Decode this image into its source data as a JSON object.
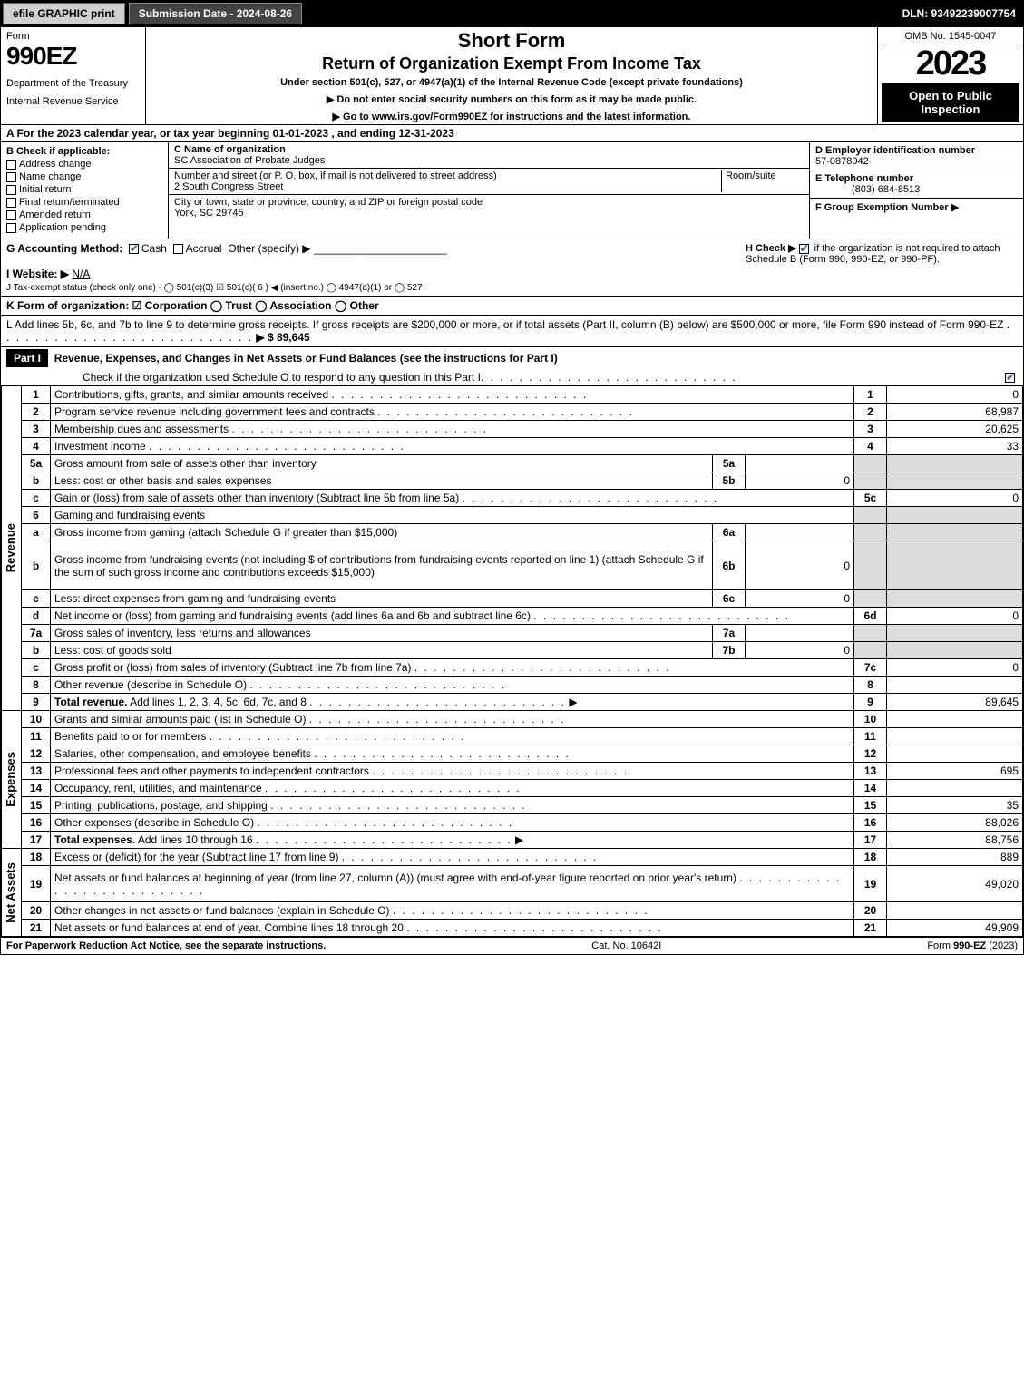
{
  "topbar": {
    "efile_label": "efile GRAPHIC print",
    "submission_label": "Submission Date - 2024-08-26",
    "dln_label": "DLN: 93492239007754"
  },
  "header": {
    "form_word": "Form",
    "form_number": "990EZ",
    "dept_line1": "Department of the Treasury",
    "dept_line2": "Internal Revenue Service",
    "title_short": "Short Form",
    "title_main": "Return of Organization Exempt From Income Tax",
    "subtitle": "Under section 501(c), 527, or 4947(a)(1) of the Internal Revenue Code (except private foundations)",
    "instr1": "▶ Do not enter social security numbers on this form as it may be made public.",
    "instr2": "▶ Go to www.irs.gov/Form990EZ for instructions and the latest information.",
    "omb": "OMB No. 1545-0047",
    "year": "2023",
    "open_to": "Open to Public Inspection"
  },
  "row_a": "A  For the 2023 calendar year, or tax year beginning 01-01-2023 , and ending 12-31-2023",
  "box_b": {
    "title": "B  Check if applicable:",
    "items": [
      "Address change",
      "Name change",
      "Initial return",
      "Final return/terminated",
      "Amended return",
      "Application pending"
    ]
  },
  "box_c": {
    "name_label": "C Name of organization",
    "name_value": "SC Association of Probate Judges",
    "street_label": "Number and street (or P. O. box, if mail is not delivered to street address)",
    "room_label": "Room/suite",
    "street_value": "2 South Congress Street",
    "city_label": "City or town, state or province, country, and ZIP or foreign postal code",
    "city_value": "York, SC  29745"
  },
  "box_d": {
    "ein_label": "D Employer identification number",
    "ein_value": "57-0878042",
    "tel_label": "E Telephone number",
    "tel_value": "(803) 684-8513",
    "group_label": "F Group Exemption Number   ▶"
  },
  "row_g": {
    "label": "G Accounting Method:",
    "cash": "Cash",
    "accrual": "Accrual",
    "other": "Other (specify) ▶",
    "h_label": "H  Check ▶",
    "h_text": "if the organization is not required to attach Schedule B (Form 990, 990-EZ, or 990-PF)."
  },
  "row_i": {
    "label": "I Website: ▶",
    "value": "N/A"
  },
  "row_j": "J Tax-exempt status (check only one) -  ◯ 501(c)(3)  ☑ 501(c)( 6 ) ◀ (insert no.)  ◯ 4947(a)(1) or  ◯ 527",
  "row_k": "K Form of organization:   ☑ Corporation   ◯ Trust   ◯ Association   ◯ Other",
  "row_l": {
    "text": "L Add lines 5b, 6c, and 7b to line 9 to determine gross receipts. If gross receipts are $200,000 or more, or if total assets (Part II, column (B) below) are $500,000 or more, file Form 990 instead of Form 990-EZ",
    "amount": "▶ $ 89,645"
  },
  "part1": {
    "label": "Part I",
    "title": "Revenue, Expenses, and Changes in Net Assets or Fund Balances (see the instructions for Part I)",
    "check_line": "Check if the organization used Schedule O to respond to any question in this Part I"
  },
  "sections": {
    "revenue_label": "Revenue",
    "expenses_label": "Expenses",
    "netassets_label": "Net Assets"
  },
  "lines": [
    {
      "sec": "rev",
      "n": "1",
      "d": "Contributions, gifts, grants, and similar amounts received",
      "ref": "1",
      "val": "0"
    },
    {
      "sec": "rev",
      "n": "2",
      "d": "Program service revenue including government fees and contracts",
      "ref": "2",
      "val": "68,987"
    },
    {
      "sec": "rev",
      "n": "3",
      "d": "Membership dues and assessments",
      "ref": "3",
      "val": "20,625"
    },
    {
      "sec": "rev",
      "n": "4",
      "d": "Investment income",
      "ref": "4",
      "val": "33"
    },
    {
      "sec": "rev",
      "n": "5a",
      "d": "Gross amount from sale of assets other than inventory",
      "mini": "5a",
      "minival": "",
      "shadedVal": true
    },
    {
      "sec": "rev",
      "n": "b",
      "d": "Less: cost or other basis and sales expenses",
      "mini": "5b",
      "minival": "0",
      "shadedVal": true
    },
    {
      "sec": "rev",
      "n": "c",
      "d": "Gain or (loss) from sale of assets other than inventory (Subtract line 5b from line 5a)",
      "ref": "5c",
      "val": "0"
    },
    {
      "sec": "rev",
      "n": "6",
      "d": "Gaming and fundraising events",
      "shadedVal": true,
      "noref": true
    },
    {
      "sec": "rev",
      "n": "a",
      "d": "Gross income from gaming (attach Schedule G if greater than $15,000)",
      "mini": "6a",
      "minival": "",
      "shadedVal": true
    },
    {
      "sec": "rev",
      "n": "b",
      "d": "Gross income from fundraising events (not including $                    of contributions from fundraising events reported on line 1) (attach Schedule G if the sum of such gross income and contributions exceeds $15,000)",
      "mini": "6b",
      "minival": "0",
      "shadedVal": true,
      "tall": true
    },
    {
      "sec": "rev",
      "n": "c",
      "d": "Less: direct expenses from gaming and fundraising events",
      "mini": "6c",
      "minival": "0",
      "shadedVal": true
    },
    {
      "sec": "rev",
      "n": "d",
      "d": "Net income or (loss) from gaming and fundraising events (add lines 6a and 6b and subtract line 6c)",
      "ref": "6d",
      "val": "0"
    },
    {
      "sec": "rev",
      "n": "7a",
      "d": "Gross sales of inventory, less returns and allowances",
      "mini": "7a",
      "minival": "",
      "shadedVal": true
    },
    {
      "sec": "rev",
      "n": "b",
      "d": "Less: cost of goods sold",
      "mini": "7b",
      "minival": "0",
      "shadedVal": true
    },
    {
      "sec": "rev",
      "n": "c",
      "d": "Gross profit or (loss) from sales of inventory (Subtract line 7b from line 7a)",
      "ref": "7c",
      "val": "0"
    },
    {
      "sec": "rev",
      "n": "8",
      "d": "Other revenue (describe in Schedule O)",
      "ref": "8",
      "val": ""
    },
    {
      "sec": "rev",
      "n": "9",
      "d": "Total revenue. Add lines 1, 2, 3, 4, 5c, 6d, 7c, and 8",
      "ref": "9",
      "val": "89,645",
      "bold": true,
      "arrow": true
    },
    {
      "sec": "exp",
      "n": "10",
      "d": "Grants and similar amounts paid (list in Schedule O)",
      "ref": "10",
      "val": ""
    },
    {
      "sec": "exp",
      "n": "11",
      "d": "Benefits paid to or for members",
      "ref": "11",
      "val": ""
    },
    {
      "sec": "exp",
      "n": "12",
      "d": "Salaries, other compensation, and employee benefits",
      "ref": "12",
      "val": ""
    },
    {
      "sec": "exp",
      "n": "13",
      "d": "Professional fees and other payments to independent contractors",
      "ref": "13",
      "val": "695"
    },
    {
      "sec": "exp",
      "n": "14",
      "d": "Occupancy, rent, utilities, and maintenance",
      "ref": "14",
      "val": ""
    },
    {
      "sec": "exp",
      "n": "15",
      "d": "Printing, publications, postage, and shipping",
      "ref": "15",
      "val": "35"
    },
    {
      "sec": "exp",
      "n": "16",
      "d": "Other expenses (describe in Schedule O)",
      "ref": "16",
      "val": "88,026"
    },
    {
      "sec": "exp",
      "n": "17",
      "d": "Total expenses. Add lines 10 through 16",
      "ref": "17",
      "val": "88,756",
      "bold": true,
      "arrow": true
    },
    {
      "sec": "net",
      "n": "18",
      "d": "Excess or (deficit) for the year (Subtract line 17 from line 9)",
      "ref": "18",
      "val": "889"
    },
    {
      "sec": "net",
      "n": "19",
      "d": "Net assets or fund balances at beginning of year (from line 27, column (A)) (must agree with end-of-year figure reported on prior year's return)",
      "ref": "19",
      "val": "49,020",
      "tall": true
    },
    {
      "sec": "net",
      "n": "20",
      "d": "Other changes in net assets or fund balances (explain in Schedule O)",
      "ref": "20",
      "val": ""
    },
    {
      "sec": "net",
      "n": "21",
      "d": "Net assets or fund balances at end of year. Combine lines 18 through 20",
      "ref": "21",
      "val": "49,909"
    }
  ],
  "footer": {
    "left": "For Paperwork Reduction Act Notice, see the separate instructions.",
    "mid": "Cat. No. 10642I",
    "right": "Form 990-EZ (2023)"
  },
  "colors": {
    "header_bg": "#000000",
    "header_fg": "#ffffff",
    "shaded": "#dddddd",
    "check_color": "#1a5fb4"
  }
}
